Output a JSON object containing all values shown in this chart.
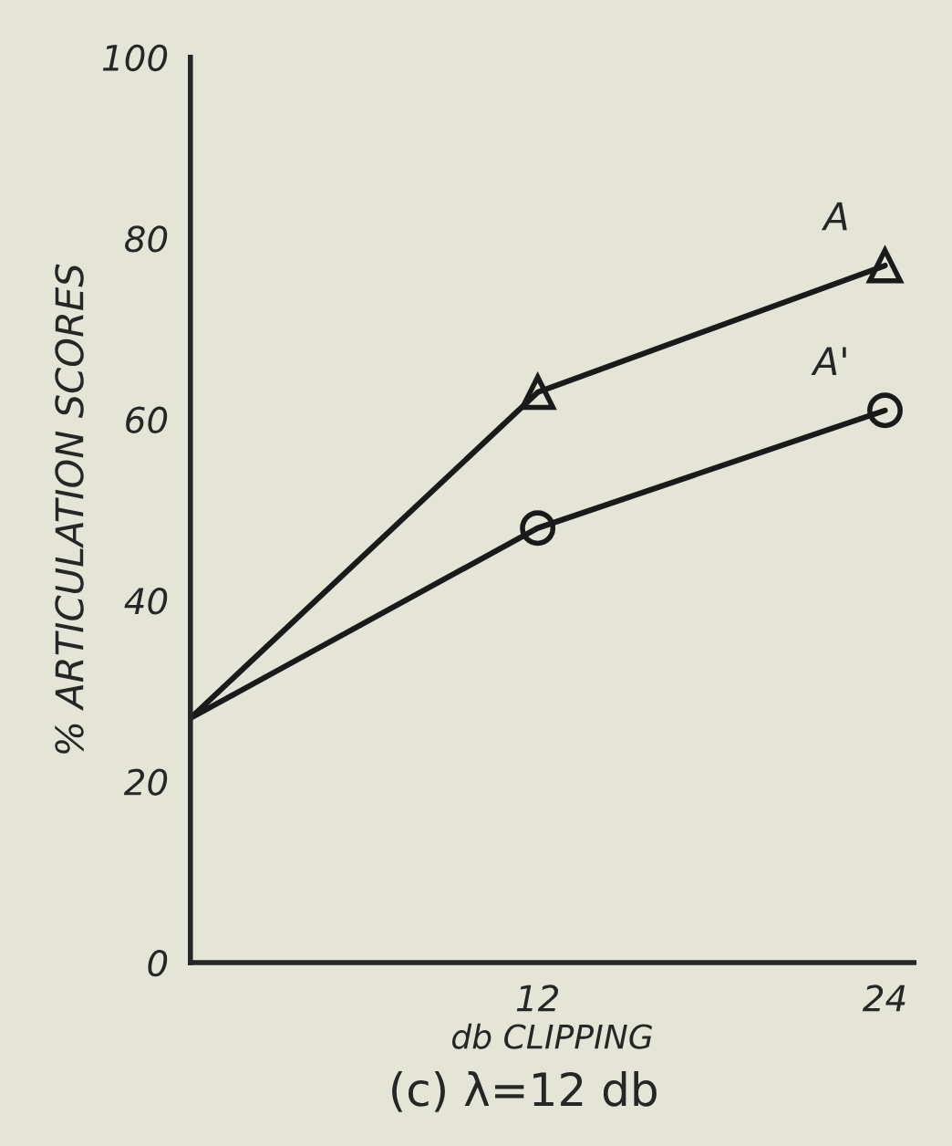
{
  "chart_data": {
    "type": "line",
    "title": "(c) λ=12 db",
    "xlabel": "db CLIPPING",
    "ylabel": "% ARTICULATION SCORES",
    "x": [
      0,
      12,
      24
    ],
    "xlim": [
      0,
      25
    ],
    "xticks": [
      12,
      24
    ],
    "ylim": [
      0,
      100
    ],
    "yticks": [
      0,
      20,
      40,
      60,
      80,
      100
    ],
    "grid": false,
    "legend": false,
    "line_style": "solid",
    "series": [
      {
        "name": "A",
        "color": "#1a1a1a",
        "marker": "triangle",
        "values": [
          27,
          63,
          77
        ]
      },
      {
        "name": "A'",
        "color": "#1a1a1a",
        "marker": "circle",
        "values": [
          27,
          48,
          61
        ]
      }
    ]
  }
}
